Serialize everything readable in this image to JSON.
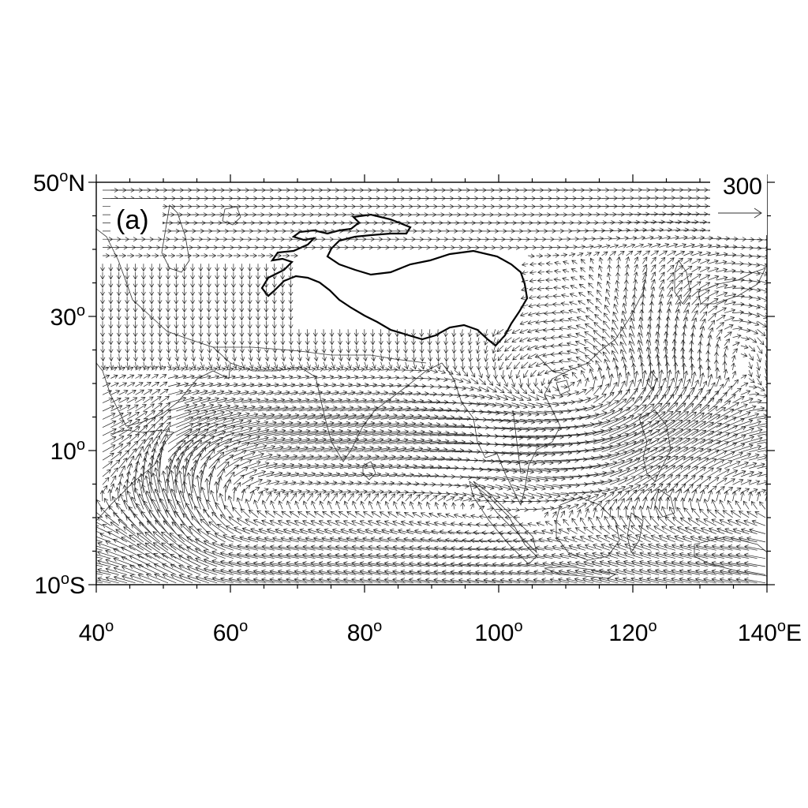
{
  "panel_label": "(a)",
  "reference_vector": {
    "magnitude_label": "300"
  },
  "axes": {
    "lon_ticks": [
      {
        "value": 40,
        "text": "40",
        "deg": "o",
        "suffix": ""
      },
      {
        "value": 60,
        "text": "60",
        "deg": "o",
        "suffix": ""
      },
      {
        "value": 80,
        "text": "80",
        "deg": "o",
        "suffix": ""
      },
      {
        "value": 100,
        "text": "100",
        "deg": "o",
        "suffix": ""
      },
      {
        "value": 120,
        "text": "120",
        "deg": "o",
        "suffix": ""
      },
      {
        "value": 140,
        "text": "140",
        "deg": "o",
        "suffix": "E"
      }
    ],
    "lat_ticks": [
      {
        "value": 50,
        "text": "50",
        "deg": "o",
        "suffix": "N"
      },
      {
        "value": 30,
        "text": "30",
        "deg": "o",
        "suffix": ""
      },
      {
        "value": 10,
        "text": "10",
        "deg": "o",
        "suffix": ""
      },
      {
        "value": -10,
        "text": "10",
        "deg": "o",
        "suffix": "S"
      }
    ],
    "lon_range": [
      40,
      140
    ],
    "lat_range": [
      -10,
      50
    ]
  },
  "map": {
    "projection": "cylindrical-equidistant",
    "field": "vector wind",
    "outlines": [
      "coastlines",
      "country-borders",
      "tibetan-plateau-contour"
    ]
  }
}
